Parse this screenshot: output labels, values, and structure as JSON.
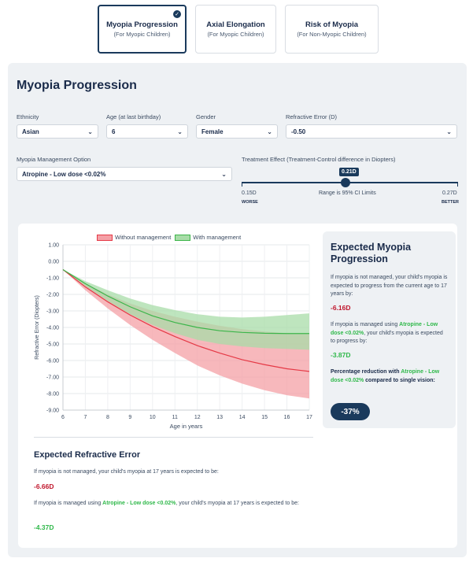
{
  "tabs": [
    {
      "title": "Myopia Progression",
      "sub": "(For Myopic Children)",
      "active": true
    },
    {
      "title": "Axial Elongation",
      "sub": "(For Myopic Children)"
    },
    {
      "title": "Risk of Myopia",
      "sub": "(For Non-Myopic Children)"
    }
  ],
  "panel": {
    "title": "Myopia Progression"
  },
  "fields": {
    "ethnicity": {
      "label": "Ethnicity",
      "value": "Asian"
    },
    "age": {
      "label": "Age (at last birthday)",
      "value": "6"
    },
    "gender": {
      "label": "Gender",
      "value": "Female"
    },
    "refractive": {
      "label": "Refractive Error (D)",
      "value": "-0.50"
    },
    "management": {
      "label": "Myopia Management Option",
      "value": "Atropine - Low dose <0.02%"
    },
    "treatment_label": "Treatment Effect (Treatment-Control difference in Diopters)"
  },
  "slider": {
    "value": "0.21D",
    "level_fraction": 0.5,
    "min_label": "0.15D",
    "min_word": "WORSE",
    "max_label": "0.27D",
    "max_word": "BETTER",
    "mid_label": "Range is 95% CI Limits"
  },
  "legend": {
    "without": "Without management",
    "with": "With management"
  },
  "colors": {
    "without": "#e53946",
    "without_band": "#f4a0a6",
    "with": "#3cb54a",
    "with_band": "#a8dca8",
    "navy": "#1a3a5c"
  },
  "chart_data": {
    "type": "line",
    "ylabel": "Refractive Error (Diopters)",
    "xlabel": "Age in years",
    "x": [
      6,
      7,
      8,
      9,
      10,
      11,
      12,
      13,
      14,
      15,
      16,
      17
    ],
    "ylim": [
      -9.0,
      1.0
    ],
    "yticks": [
      "1.00",
      "0.00",
      "-1.00",
      "-2.00",
      "-3.00",
      "-4.00",
      "-5.00",
      "-6.00",
      "-7.00",
      "-8.00",
      "-9.00"
    ],
    "grid": true,
    "legend_position": "top",
    "series": [
      {
        "name": "Without management",
        "values": [
          -0.5,
          -1.55,
          -2.45,
          -3.25,
          -3.95,
          -4.55,
          -5.1,
          -5.55,
          -5.95,
          -6.25,
          -6.5,
          -6.66
        ],
        "upper": [
          -0.5,
          -1.35,
          -2.0,
          -2.55,
          -3.0,
          -3.35,
          -3.65,
          -3.9,
          -4.1,
          -4.25,
          -4.35,
          -4.4
        ],
        "lower": [
          -0.5,
          -1.75,
          -2.85,
          -3.85,
          -4.75,
          -5.55,
          -6.3,
          -6.9,
          -7.4,
          -7.8,
          -8.1,
          -8.3
        ]
      },
      {
        "name": "With management",
        "values": [
          -0.5,
          -1.35,
          -2.1,
          -2.75,
          -3.3,
          -3.7,
          -4.0,
          -4.2,
          -4.3,
          -4.35,
          -4.37,
          -4.37
        ],
        "upper": [
          -0.5,
          -1.2,
          -1.75,
          -2.25,
          -2.65,
          -2.95,
          -3.2,
          -3.35,
          -3.4,
          -3.35,
          -3.25,
          -3.15
        ],
        "lower": [
          -0.5,
          -1.5,
          -2.4,
          -3.2,
          -3.85,
          -4.35,
          -4.75,
          -5.0,
          -5.15,
          -5.25,
          -5.3,
          -5.35
        ]
      }
    ]
  },
  "expected": {
    "title": "Expected Myopia Progression",
    "text1": "If myopia is not managed, your child's myopia is expected to progress from the current age to 17 years by:",
    "val1": "-6.16D",
    "text2_pre": "If myopia is managed using ",
    "text2_hl": "Atropine - Low dose <0.02%",
    "text2_post": ", your child's myopia is expected to progress by:",
    "val2": "-3.87D",
    "text3_pre": "Percentage reduction with ",
    "text3_hl": "Atropine - Low dose <0.02%",
    "text3_post": " compared to single vision:",
    "pct": "-37%"
  },
  "refractive": {
    "title": "Expected Refractive Error",
    "text1": "If myopia is not managed, your child's myopia at 17 years is expected to be:",
    "val1": "-6.66D",
    "text2_pre": "If myopia is managed using ",
    "text2_hl": "Atropine - Low dose <0.02%",
    "text2_post": ", your child's myopia at 17 years is expected to be:",
    "val2": "-4.37D"
  }
}
